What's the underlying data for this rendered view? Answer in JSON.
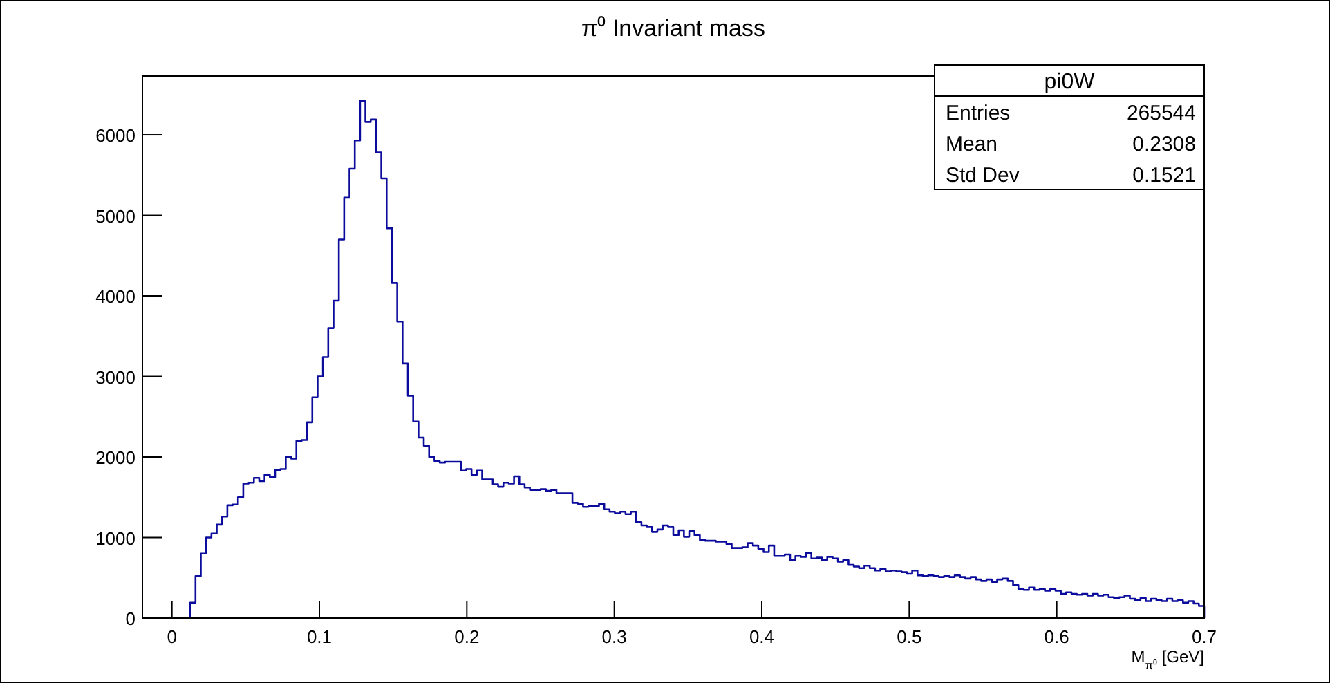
{
  "chart_data": {
    "type": "histogram",
    "title": "π⁰ Invariant mass",
    "xlabel": "M$_{π⁰}$ [GeV]",
    "color": "#0c0c9c",
    "annotations": [
      "pi0W",
      "Entries",
      "265544",
      "Mean",
      "0.2308",
      "Std Dev",
      "0.1521"
    ],
    "xlim": [
      -0.02,
      0.7
    ],
    "ylim": [
      0,
      6730
    ],
    "xticks": [
      0,
      0.1,
      0.2,
      0.3,
      0.4,
      0.5,
      0.6,
      0.7
    ],
    "yticks": [
      0,
      1000,
      2000,
      3000,
      4000,
      5000,
      6000
    ],
    "bins": [
      -0.02,
      -0.0164,
      -0.0128,
      -0.0092,
      -0.0056,
      -0.002,
      0.0016,
      0.0052,
      0.0088,
      0.0124,
      0.016,
      0.0196,
      0.0232,
      0.0268,
      0.0304,
      0.034,
      0.0376,
      0.0412,
      0.0448,
      0.0484,
      0.052,
      0.0556,
      0.0592,
      0.0628,
      0.0664,
      0.07,
      0.0736,
      0.0772,
      0.0808,
      0.0844,
      0.088,
      0.0916,
      0.0952,
      0.0988,
      0.1024,
      0.106,
      0.1096,
      0.1132,
      0.1168,
      0.1204,
      0.124,
      0.1276,
      0.1312,
      0.1348,
      0.1384,
      0.142,
      0.1456,
      0.1492,
      0.1528,
      0.1564,
      0.16,
      0.1636,
      0.1672,
      0.1708,
      0.1744,
      0.178,
      0.1816,
      0.1852,
      0.1888,
      0.1924,
      0.196,
      0.1996,
      0.2032,
      0.2068,
      0.2104,
      0.214,
      0.2176,
      0.2212,
      0.2248,
      0.2284,
      0.232,
      0.2356,
      0.2392,
      0.2428,
      0.2464,
      0.25,
      0.2536,
      0.2572,
      0.2608,
      0.2644,
      0.268,
      0.2716,
      0.2752,
      0.2788,
      0.2824,
      0.286,
      0.2896,
      0.2932,
      0.2968,
      0.3004,
      0.304,
      0.3076,
      0.3112,
      0.3148,
      0.3184,
      0.322,
      0.3256,
      0.3292,
      0.3328,
      0.3364,
      0.34,
      0.3436,
      0.3472,
      0.3508,
      0.3544,
      0.358,
      0.3616,
      0.3652,
      0.3688,
      0.3724,
      0.376,
      0.3796,
      0.3832,
      0.3868,
      0.3904,
      0.394,
      0.3976,
      0.4012,
      0.4048,
      0.4084,
      0.412,
      0.4156,
      0.4192,
      0.4228,
      0.4264,
      0.43,
      0.4336,
      0.4372,
      0.4408,
      0.4444,
      0.448,
      0.4516,
      0.4552,
      0.4588,
      0.4624,
      0.466,
      0.4696,
      0.4732,
      0.4768,
      0.4804,
      0.484,
      0.4876,
      0.4912,
      0.4948,
      0.4984,
      0.502,
      0.5056,
      0.5092,
      0.5128,
      0.5164,
      0.52,
      0.5236,
      0.5272,
      0.5308,
      0.5344,
      0.538,
      0.5416,
      0.5452,
      0.5488,
      0.5524,
      0.556,
      0.5596,
      0.5632,
      0.5668,
      0.5704,
      0.574,
      0.5776,
      0.5812,
      0.5848,
      0.5884,
      0.592,
      0.5956,
      0.5992,
      0.6028,
      0.6064,
      0.61,
      0.6136,
      0.6172,
      0.6208,
      0.6244,
      0.628,
      0.6316,
      0.6352,
      0.6388,
      0.6424,
      0.646,
      0.6496,
      0.6532,
      0.6568,
      0.6604,
      0.664,
      0.6676,
      0.6712,
      0.6748,
      0.6784,
      0.682,
      0.6856,
      0.6892,
      0.6928,
      0.6964,
      0.7
    ],
    "values": [
      0,
      0,
      0,
      0,
      0,
      0,
      0,
      0,
      0,
      190,
      520,
      800,
      1000,
      1050,
      1160,
      1260,
      1400,
      1410,
      1500,
      1670,
      1680,
      1740,
      1700,
      1780,
      1750,
      1840,
      1850,
      2000,
      1980,
      2200,
      2210,
      2430,
      2740,
      3000,
      3240,
      3600,
      3940,
      4700,
      5220,
      5580,
      5930,
      6420,
      6160,
      6190,
      5780,
      5460,
      4840,
      4160,
      3680,
      3160,
      2760,
      2440,
      2240,
      2140,
      2000,
      1950,
      1930,
      1940,
      1940,
      1940,
      1830,
      1850,
      1780,
      1830,
      1720,
      1720,
      1660,
      1630,
      1680,
      1670,
      1760,
      1660,
      1620,
      1590,
      1590,
      1600,
      1580,
      1590,
      1550,
      1550,
      1550,
      1430,
      1420,
      1380,
      1390,
      1390,
      1420,
      1350,
      1320,
      1300,
      1320,
      1290,
      1320,
      1190,
      1150,
      1130,
      1070,
      1100,
      1150,
      1130,
      1030,
      1090,
      1010,
      1080,
      1030,
      970,
      960,
      960,
      950,
      950,
      920,
      870,
      870,
      880,
      930,
      900,
      860,
      820,
      900,
      770,
      770,
      790,
      720,
      770,
      760,
      810,
      740,
      750,
      720,
      760,
      740,
      700,
      720,
      660,
      640,
      620,
      650,
      620,
      590,
      610,
      580,
      590,
      580,
      570,
      550,
      590,
      530,
      520,
      530,
      520,
      510,
      520,
      510,
      530,
      510,
      490,
      510,
      480,
      460,
      480,
      450,
      480,
      490,
      460,
      410,
      360,
      350,
      380,
      350,
      360,
      340,
      360,
      340,
      300,
      320,
      300,
      290,
      300,
      280,
      300,
      280,
      290,
      260,
      250,
      260,
      280,
      240,
      220,
      250,
      210,
      240,
      220,
      210,
      240,
      210,
      220,
      190,
      210,
      180,
      150
    ]
  }
}
